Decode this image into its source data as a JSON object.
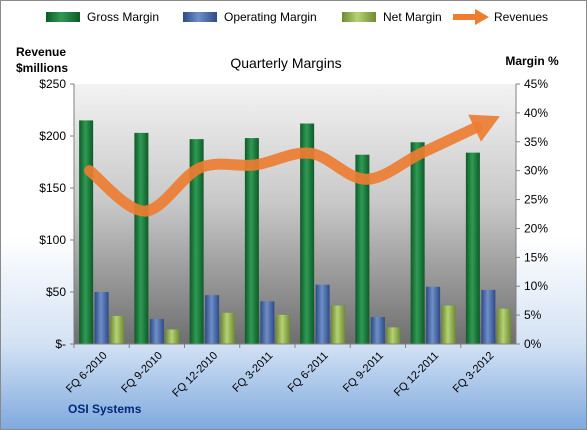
{
  "chart_data": {
    "type": "bar",
    "title": "Quarterly Margins",
    "source_label": "OSI Systems",
    "categories": [
      "FQ 6-2010",
      "FQ 9-2010",
      "FQ 12-2010",
      "FQ 3-2011",
      "FQ 6-2011",
      "FQ 9-2011",
      "FQ 12-2011",
      "FQ 3-2012"
    ],
    "left_axis": {
      "title_line1": "Revenue",
      "title_line2": "$millions",
      "range": [
        0,
        250
      ],
      "ticks": [
        0,
        50,
        100,
        150,
        200,
        250
      ],
      "tick_labels": [
        "$-",
        "$50",
        "$100",
        "$150",
        "$200",
        "$250"
      ]
    },
    "right_axis": {
      "title": "Margin %",
      "range": [
        0,
        45
      ],
      "ticks": [
        0,
        5,
        10,
        15,
        20,
        25,
        30,
        35,
        40,
        45
      ],
      "tick_labels": [
        "0%",
        "5%",
        "10%",
        "15%",
        "20%",
        "25%",
        "30%",
        "35%",
        "40%",
        "45%"
      ]
    },
    "series": [
      {
        "name": "Gross Margin",
        "kind": "bar",
        "axis": "left",
        "color": "#1e7b3c",
        "values": [
          215,
          203,
          197,
          198,
          212,
          182,
          194,
          184
        ]
      },
      {
        "name": "Operating Margin",
        "kind": "bar",
        "axis": "left",
        "color": "#4f6fae",
        "values": [
          50,
          24,
          47,
          41,
          57,
          26,
          55,
          52
        ]
      },
      {
        "name": "Net Margin",
        "kind": "bar",
        "axis": "left",
        "color": "#9bbb59",
        "values": [
          27,
          14,
          30,
          28,
          37,
          16,
          37,
          34
        ]
      },
      {
        "name": "Revenues",
        "kind": "line",
        "axis": "right",
        "color": "#ed7d31",
        "values": [
          30,
          23,
          30.5,
          31,
          33,
          28.5,
          33,
          37.5
        ]
      }
    ],
    "grid": false,
    "legend_position": "top"
  }
}
